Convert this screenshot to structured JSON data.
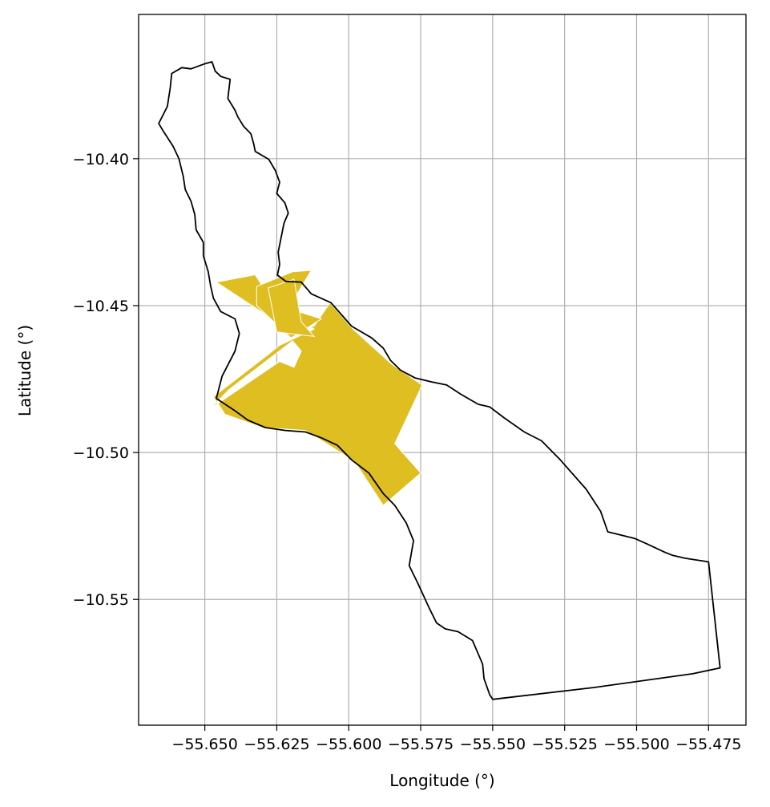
{
  "chart_data": {
    "type": "map",
    "xlabel": "Longitude (°)",
    "ylabel": "Latitude (°)",
    "xlim": [
      -55.673,
      -55.462
    ],
    "ylim": [
      -10.5928,
      -10.3509
    ],
    "grid": true,
    "x_ticks": [
      {
        "value": -55.65,
        "label": "−55.650"
      },
      {
        "value": -55.625,
        "label": "−55.625"
      },
      {
        "value": -55.6,
        "label": "−55.600"
      },
      {
        "value": -55.575,
        "label": "−55.575"
      },
      {
        "value": -55.55,
        "label": "−55.550"
      },
      {
        "value": -55.525,
        "label": "−55.525"
      },
      {
        "value": -55.5,
        "label": "−55.500"
      },
      {
        "value": -55.475,
        "label": "−55.475"
      }
    ],
    "y_ticks": [
      {
        "value": -10.4,
        "label": "−10.40"
      },
      {
        "value": -10.45,
        "label": "−10.45"
      },
      {
        "value": -10.5,
        "label": "−10.50"
      },
      {
        "value": -10.55,
        "label": "−10.55"
      }
    ],
    "colors": {
      "fill": "#DFBE22",
      "boundary": "#000000",
      "grid": "#b0b0b0"
    },
    "boundary": [
      [
        -55.6548,
        -10.3694
      ],
      [
        -55.65,
        -10.3677
      ],
      [
        -55.6475,
        -10.367
      ],
      [
        -55.6464,
        -10.3702
      ],
      [
        -55.6444,
        -10.372
      ],
      [
        -55.6412,
        -10.373
      ],
      [
        -55.642,
        -10.3795
      ],
      [
        -55.6395,
        -10.3835
      ],
      [
        -55.6385,
        -10.3858
      ],
      [
        -55.6365,
        -10.389
      ],
      [
        -55.634,
        -10.3915
      ],
      [
        -55.633,
        -10.395
      ],
      [
        -55.6325,
        -10.3975
      ],
      [
        -55.6278,
        -10.4002
      ],
      [
        -55.6255,
        -10.404
      ],
      [
        -55.624,
        -10.408
      ],
      [
        -55.625,
        -10.4118
      ],
      [
        -55.6222,
        -10.415
      ],
      [
        -55.621,
        -10.4185
      ],
      [
        -55.6225,
        -10.422
      ],
      [
        -55.6245,
        -10.4318
      ],
      [
        -55.624,
        -10.436
      ],
      [
        -55.6248,
        -10.4396
      ],
      [
        -55.6218,
        -10.4418
      ],
      [
        -55.6165,
        -10.442
      ],
      [
        -55.613,
        -10.446
      ],
      [
        -55.6062,
        -10.449
      ],
      [
        -55.599,
        -10.457
      ],
      [
        -55.592,
        -10.461
      ],
      [
        -55.588,
        -10.4645
      ],
      [
        -55.5855,
        -10.4686
      ],
      [
        -55.582,
        -10.472
      ],
      [
        -55.577,
        -10.4746
      ],
      [
        -55.571,
        -10.476
      ],
      [
        -55.566,
        -10.477
      ],
      [
        -55.561,
        -10.4802
      ],
      [
        -55.555,
        -10.4836
      ],
      [
        -55.551,
        -10.4845
      ],
      [
        -55.546,
        -10.4882
      ],
      [
        -55.539,
        -10.493
      ],
      [
        -55.533,
        -10.496
      ],
      [
        -55.5265,
        -10.5025
      ],
      [
        -55.5175,
        -10.5125
      ],
      [
        -55.5125,
        -10.52
      ],
      [
        -55.51,
        -10.527
      ],
      [
        -55.5005,
        -10.5293
      ],
      [
        -55.496,
        -10.5313
      ],
      [
        -55.4905,
        -10.5338
      ],
      [
        -55.4875,
        -10.535
      ],
      [
        -55.483,
        -10.536
      ],
      [
        -55.475,
        -10.5372
      ],
      [
        -55.471,
        -10.5733
      ],
      [
        -55.4805,
        -10.5753
      ],
      [
        -55.515,
        -10.58
      ],
      [
        -55.55,
        -10.584
      ],
      [
        -55.551,
        -10.5825
      ],
      [
        -55.553,
        -10.577
      ],
      [
        -55.5535,
        -10.572
      ],
      [
        -55.557,
        -10.564
      ],
      [
        -55.562,
        -10.561
      ],
      [
        -55.5665,
        -10.56
      ],
      [
        -55.5695,
        -10.558
      ],
      [
        -55.572,
        -10.553
      ],
      [
        -55.576,
        -10.5445
      ],
      [
        -55.579,
        -10.5385
      ],
      [
        -55.5775,
        -10.53
      ],
      [
        -55.58,
        -10.524
      ],
      [
        -55.584,
        -10.518
      ],
      [
        -55.588,
        -10.514
      ],
      [
        -55.593,
        -10.507
      ],
      [
        -55.599,
        -10.5025
      ],
      [
        -55.604,
        -10.4975
      ],
      [
        -55.6095,
        -10.495
      ],
      [
        -55.615,
        -10.493
      ],
      [
        -55.622,
        -10.4925
      ],
      [
        -55.629,
        -10.4915
      ],
      [
        -55.635,
        -10.489
      ],
      [
        -55.6395,
        -10.4858
      ],
      [
        -55.6435,
        -10.4832
      ],
      [
        -55.646,
        -10.4816
      ],
      [
        -55.644,
        -10.474
      ],
      [
        -55.6395,
        -10.4655
      ],
      [
        -55.638,
        -10.4595
      ],
      [
        -55.6395,
        -10.4545
      ],
      [
        -55.6445,
        -10.452
      ],
      [
        -55.647,
        -10.4475
      ],
      [
        -55.648,
        -10.4432
      ],
      [
        -55.6488,
        -10.4385
      ],
      [
        -55.6505,
        -10.433
      ],
      [
        -55.6505,
        -10.4285
      ],
      [
        -55.653,
        -10.4242
      ],
      [
        -55.6535,
        -10.419
      ],
      [
        -55.6548,
        -10.4145
      ],
      [
        -55.6568,
        -10.4105
      ],
      [
        -55.6575,
        -10.406
      ],
      [
        -55.659,
        -10.4
      ],
      [
        -55.661,
        -10.3958
      ],
      [
        -55.6645,
        -10.3905
      ],
      [
        -55.666,
        -10.388
      ],
      [
        -55.663,
        -10.3822
      ],
      [
        -55.662,
        -10.3758
      ],
      [
        -55.6615,
        -10.371
      ],
      [
        -55.658,
        -10.369
      ],
      [
        -55.6548,
        -10.3694
      ]
    ],
    "regions": [
      {
        "polygon": [
          [
            -55.646,
            -10.442
          ],
          [
            -55.6325,
            -10.4395
          ],
          [
            -55.629,
            -10.445
          ],
          [
            -55.612,
            -10.458
          ],
          [
            -55.624,
            -10.4635
          ],
          [
            -55.6285,
            -10.467
          ],
          [
            -55.647,
            -10.481
          ],
          [
            -55.643,
            -10.487
          ],
          [
            -55.63,
            -10.4915
          ],
          [
            -55.615,
            -10.4925
          ],
          [
            -55.598,
            -10.503
          ],
          [
            -55.588,
            -10.518
          ],
          [
            -55.575,
            -10.507
          ],
          [
            -55.584,
            -10.497
          ],
          [
            -55.5745,
            -10.477
          ],
          [
            -55.585,
            -10.47
          ],
          [
            -55.5985,
            -10.458
          ],
          [
            -55.6065,
            -10.449
          ],
          [
            -55.612,
            -10.457
          ],
          [
            -55.6235,
            -10.4565
          ],
          [
            -55.646,
            -10.442
          ]
        ],
        "holes": [
          [
            [
              -55.648,
              -10.485
            ],
            [
              -55.624,
              -10.469
            ],
            [
              -55.619,
              -10.471
            ],
            [
              -55.6165,
              -10.4655
            ],
            [
              -55.6195,
              -10.462
            ],
            [
              -55.6415,
              -10.4785
            ],
            [
              -55.648,
              -10.485
            ]
          ]
        ]
      },
      {
        "polygon": [
          [
            -55.632,
            -10.4435
          ],
          [
            -55.6195,
            -10.4385
          ],
          [
            -55.613,
            -10.438
          ],
          [
            -55.621,
            -10.451
          ],
          [
            -55.6095,
            -10.4545
          ],
          [
            -55.62,
            -10.461
          ],
          [
            -55.632,
            -10.45
          ],
          [
            -55.632,
            -10.4435
          ]
        ],
        "holes": []
      },
      {
        "polygon": [
          [
            -55.628,
            -10.444
          ],
          [
            -55.619,
            -10.441
          ],
          [
            -55.6165,
            -10.4555
          ],
          [
            -55.612,
            -10.4605
          ],
          [
            -55.625,
            -10.459
          ],
          [
            -55.628,
            -10.444
          ]
        ],
        "holes": []
      }
    ]
  }
}
